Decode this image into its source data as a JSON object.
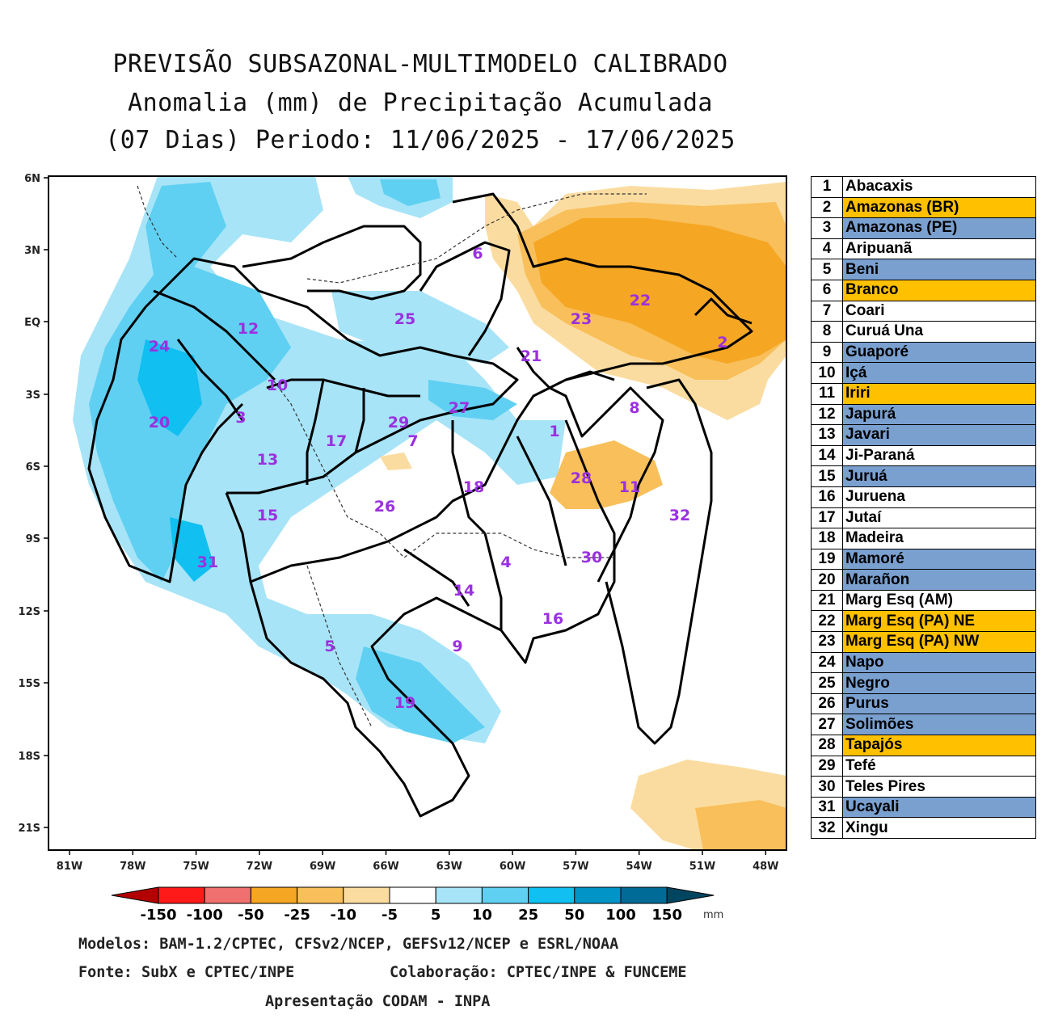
{
  "title": {
    "line1": "PREVISÃO SUBSAZONAL-MULTIMODELO CALIBRADO",
    "line2": "Anomalia (mm) de Precipitação Acumulada",
    "line3": "(07 Dias) Periodo: 11/06/2025 - 17/06/2025"
  },
  "map": {
    "lat_labels": [
      "6N",
      "3N",
      "EQ",
      "3S",
      "6S",
      "9S",
      "12S",
      "15S",
      "18S",
      "21S"
    ],
    "lon_labels": [
      "81W",
      "78W",
      "75W",
      "72W",
      "69W",
      "66W",
      "63W",
      "60W",
      "57W",
      "54W",
      "51W",
      "48W"
    ],
    "basin_labels": [
      "1",
      "2",
      "3",
      "4",
      "5",
      "6",
      "7",
      "8",
      "9",
      "10",
      "11",
      "12",
      "13",
      "14",
      "15",
      "16",
      "17",
      "18",
      "19",
      "20",
      "21",
      "22",
      "23",
      "24",
      "25",
      "26",
      "27",
      "28",
      "29",
      "30",
      "31",
      "32"
    ],
    "label_color": "#9b30e0"
  },
  "colorbar": {
    "labels": [
      "-150",
      "-100",
      "-50",
      "-25",
      "-10",
      "-5",
      "5",
      "10",
      "25",
      "50",
      "100",
      "150"
    ],
    "unit": "mm",
    "colors": [
      "#b30000",
      "#ff1a1a",
      "#f07070",
      "#f5a623",
      "#f8bf5a",
      "#fbdca0",
      "#ffffff",
      "#a7e4f7",
      "#5fd0f2",
      "#11bff0",
      "#0094c7",
      "#006b96",
      "#004560"
    ]
  },
  "legend": [
    {
      "num": "1",
      "name": "Abacaxis",
      "color": "#ffffff"
    },
    {
      "num": "2",
      "name": "Amazonas (BR)",
      "color": "#ffc000"
    },
    {
      "num": "3",
      "name": "Amazonas (PE)",
      "color": "#7aa0d0"
    },
    {
      "num": "4",
      "name": "Aripuanã",
      "color": "#ffffff"
    },
    {
      "num": "5",
      "name": "Beni",
      "color": "#7aa0d0"
    },
    {
      "num": "6",
      "name": "Branco",
      "color": "#ffc000"
    },
    {
      "num": "7",
      "name": "Coari",
      "color": "#ffffff"
    },
    {
      "num": "8",
      "name": "Curuá Una",
      "color": "#ffffff"
    },
    {
      "num": "9",
      "name": "Guaporé",
      "color": "#7aa0d0"
    },
    {
      "num": "10",
      "name": "Içá",
      "color": "#7aa0d0"
    },
    {
      "num": "11",
      "name": "Iriri",
      "color": "#ffc000"
    },
    {
      "num": "12",
      "name": "Japurá",
      "color": "#7aa0d0"
    },
    {
      "num": "13",
      "name": "Javari",
      "color": "#7aa0d0"
    },
    {
      "num": "14",
      "name": "Ji-Paraná",
      "color": "#ffffff"
    },
    {
      "num": "15",
      "name": "Juruá",
      "color": "#7aa0d0"
    },
    {
      "num": "16",
      "name": "Juruena",
      "color": "#ffffff"
    },
    {
      "num": "17",
      "name": "Jutaí",
      "color": "#ffffff"
    },
    {
      "num": "18",
      "name": "Madeira",
      "color": "#ffffff"
    },
    {
      "num": "19",
      "name": "Mamoré",
      "color": "#7aa0d0"
    },
    {
      "num": "20",
      "name": "Marañon",
      "color": "#7aa0d0"
    },
    {
      "num": "21",
      "name": "Marg Esq (AM)",
      "color": "#ffffff"
    },
    {
      "num": "22",
      "name": "Marg Esq (PA) NE",
      "color": "#ffc000"
    },
    {
      "num": "23",
      "name": "Marg Esq (PA) NW",
      "color": "#ffc000"
    },
    {
      "num": "24",
      "name": "Napo",
      "color": "#7aa0d0"
    },
    {
      "num": "25",
      "name": "Negro",
      "color": "#7aa0d0"
    },
    {
      "num": "26",
      "name": "Purus",
      "color": "#7aa0d0"
    },
    {
      "num": "27",
      "name": "Solimões",
      "color": "#7aa0d0"
    },
    {
      "num": "28",
      "name": "Tapajós",
      "color": "#ffc000"
    },
    {
      "num": "29",
      "name": "Tefé",
      "color": "#ffffff"
    },
    {
      "num": "30",
      "name": "Teles Pires",
      "color": "#ffffff"
    },
    {
      "num": "31",
      "name": "Ucayali",
      "color": "#7aa0d0"
    },
    {
      "num": "32",
      "name": "Xingu",
      "color": "#ffffff"
    }
  ],
  "footer": {
    "line1": "Modelos: BAM-1.2/CPTEC, CFSv2/NCEP, GEFSv12/NCEP e ESRL/NOAA",
    "line2a": "Fonte: SubX e CPTEC/INPE",
    "line2b": "Colaboração: CPTEC/INPE & FUNCEME",
    "line3": "Apresentação CODAM - INPA"
  }
}
